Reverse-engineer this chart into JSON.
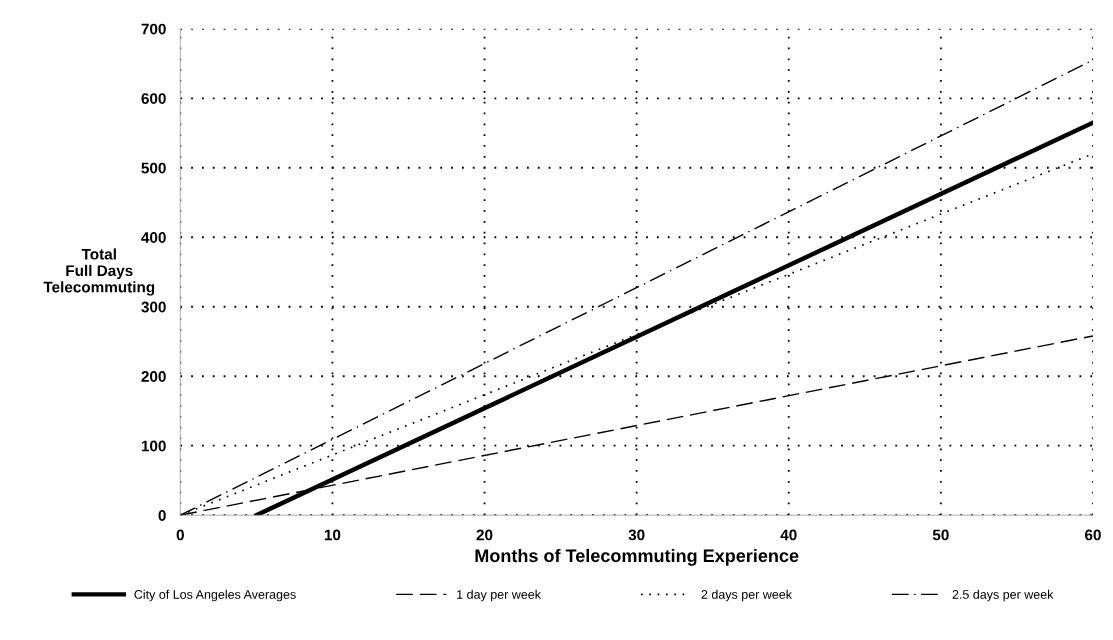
{
  "chart_data": {
    "type": "line",
    "xlabel": "Months of Telecommuting Experience",
    "ylabel": "Total\nFull Days\nTelecommuting",
    "xlim": [
      0,
      60
    ],
    "xticks": [
      0,
      10,
      20,
      30,
      40,
      50,
      60
    ],
    "ylim": [
      0,
      700
    ],
    "yticks": [
      0,
      100,
      200,
      300,
      400,
      500,
      600,
      700
    ],
    "grid": true,
    "legend": "bottom",
    "marker": "none",
    "series": [
      {
        "name": "City of Los Angeles Averages",
        "color": "#000000",
        "x": [
          5,
          60
        ],
        "values": [
          0,
          565
        ],
        "line_style": "solid"
      },
      {
        "name": "1 day per week",
        "color": "#000000",
        "x": [
          0,
          60
        ],
        "values": [
          0,
          258
        ],
        "line_style": "dashed"
      },
      {
        "name": "2 days per week",
        "color": "#000000",
        "x": [
          0,
          60
        ],
        "values": [
          0,
          520
        ],
        "line_style": "dotted"
      },
      {
        "name": "2.5 days per week",
        "color": "#000000",
        "x": [
          0,
          60
        ],
        "values": [
          0,
          655
        ],
        "line_style": "dashdot"
      }
    ]
  }
}
